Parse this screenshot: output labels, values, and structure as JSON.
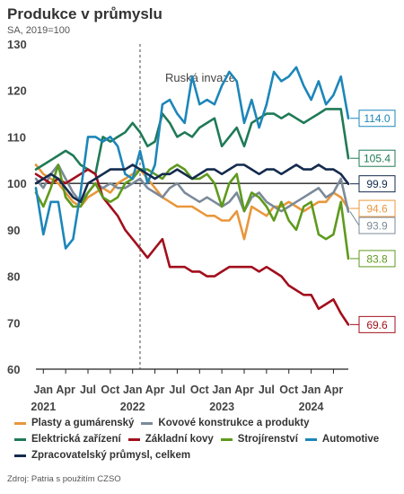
{
  "header": {
    "title": "Produkce v průmyslu",
    "subtitle": "SA, 2019=100"
  },
  "source": "Zdroj: Patria s použitím CZSO",
  "chart_data": {
    "type": "line",
    "title": "Produkce v průmyslu",
    "subtitle": "SA, 2019=100",
    "ylim": [
      60,
      130
    ],
    "yticks": [
      60,
      70,
      80,
      90,
      100,
      110,
      120,
      130
    ],
    "x_start": "2020-12",
    "x_end": "2024-06",
    "x_ticks": [
      {
        "label": "Jan",
        "year": "2021",
        "date": "2021-01"
      },
      {
        "label": "Apr",
        "year": "",
        "date": "2021-04"
      },
      {
        "label": "Jul",
        "year": "",
        "date": "2021-07"
      },
      {
        "label": "Oct",
        "year": "",
        "date": "2021-10"
      },
      {
        "label": "Jan",
        "year": "2022",
        "date": "2022-01"
      },
      {
        "label": "Apr",
        "year": "",
        "date": "2022-04"
      },
      {
        "label": "Jul",
        "year": "",
        "date": "2022-07"
      },
      {
        "label": "Oct",
        "year": "",
        "date": "2022-10"
      },
      {
        "label": "Jan",
        "year": "2023",
        "date": "2023-01"
      },
      {
        "label": "Apr",
        "year": "",
        "date": "2023-04"
      },
      {
        "label": "Jul",
        "year": "",
        "date": "2023-07"
      },
      {
        "label": "Oct",
        "year": "",
        "date": "2023-10"
      },
      {
        "label": "Jan",
        "year": "2024",
        "date": "2024-01"
      },
      {
        "label": "Apr",
        "year": "",
        "date": "2024-04"
      }
    ],
    "annotation": {
      "text": "Ruská invaze",
      "date": "2022-02"
    },
    "grid": false,
    "reference_line": 100,
    "legend_position": "bottom",
    "series": [
      {
        "name": "Plasty a gumárenský",
        "color": "#e8973c",
        "end_label": "94.6",
        "values": [
          104,
          102,
          101,
          100,
          98,
          96,
          95,
          97,
          98,
          99,
          98,
          100,
          101,
          102,
          103,
          101,
          99,
          97,
          96,
          95,
          95,
          95,
          94,
          93,
          93,
          92,
          92,
          94,
          88,
          95,
          94,
          93,
          95,
          95,
          96,
          95,
          94,
          95,
          96,
          96,
          98,
          97,
          94.6
        ]
      },
      {
        "name": "Kovové konstrukce a produkty",
        "color": "#7b8a99",
        "end_label": "93.9",
        "values": [
          101,
          99,
          102,
          104,
          101,
          98,
          96,
          98,
          100,
          99,
          100,
          99,
          99,
          100,
          101,
          99,
          98,
          97,
          99,
          100,
          98,
          97,
          96,
          97,
          96,
          95,
          96,
          98,
          94,
          97,
          98,
          96,
          95,
          94,
          95,
          96,
          97,
          98,
          99,
          97,
          98,
          101,
          93.9
        ]
      },
      {
        "name": "Elektrická zařízení",
        "color": "#1f7a56",
        "end_label": "105.4",
        "values": [
          103,
          104,
          105,
          106,
          107,
          106,
          104,
          103,
          102,
          110,
          109,
          110,
          111,
          113,
          111,
          108,
          109,
          115,
          113,
          110,
          111,
          110,
          112,
          113,
          114,
          108,
          110,
          112,
          108,
          113,
          114,
          115,
          115,
          114,
          115,
          114,
          113,
          114,
          115,
          116,
          116,
          116,
          105.4
        ]
      },
      {
        "name": "Základní kovy",
        "color": "#a10f1c",
        "end_label": "69.6",
        "values": [
          102,
          101,
          100,
          101,
          100,
          101,
          102,
          103,
          102,
          97,
          95,
          93,
          90,
          88,
          86,
          84,
          86,
          88,
          82,
          82,
          82,
          81,
          81,
          80,
          80,
          81,
          82,
          82,
          82,
          82,
          81,
          82,
          81,
          80,
          78,
          77,
          76,
          76,
          73,
          74,
          75,
          72,
          69.6
        ]
      },
      {
        "name": "Strojírenství",
        "color": "#5e9a1c",
        "end_label": "83.8",
        "values": [
          98,
          95,
          99,
          104,
          97,
          95,
          95,
          98,
          100,
          97,
          96,
          97,
          100,
          101,
          103,
          103,
          102,
          101,
          103,
          104,
          103,
          101,
          101,
          102,
          100,
          95,
          100,
          102,
          94,
          98,
          97,
          95,
          92,
          96,
          92,
          90,
          95,
          96,
          89,
          88,
          89,
          96,
          83.8
        ]
      },
      {
        "name": "Automotive",
        "color": "#1d86b9",
        "end_label": "114.0",
        "values": [
          99,
          89,
          96,
          96,
          86,
          88,
          98,
          110,
          110,
          109,
          110,
          108,
          102,
          101,
          107,
          100,
          104,
          117,
          118,
          115,
          113,
          123,
          117,
          118,
          117,
          121,
          124,
          122,
          113,
          118,
          112,
          117,
          124,
          122,
          123,
          125,
          121,
          118,
          122,
          117,
          119,
          123,
          114.0
        ]
      },
      {
        "name": "Zpracovatelský průmysl, celkem",
        "color": "#142b4e",
        "end_label": "99.9",
        "values": [
          100,
          101,
          102,
          101,
          99,
          97,
          96,
          100,
          101,
          102,
          103,
          103,
          103,
          104,
          103,
          102,
          101,
          102,
          102,
          103,
          102,
          101,
          102,
          103,
          103,
          102,
          103,
          104,
          104,
          103,
          102,
          103,
          103,
          102,
          103,
          104,
          103,
          103,
          104,
          103,
          103,
          102,
          99.9
        ]
      }
    ]
  }
}
